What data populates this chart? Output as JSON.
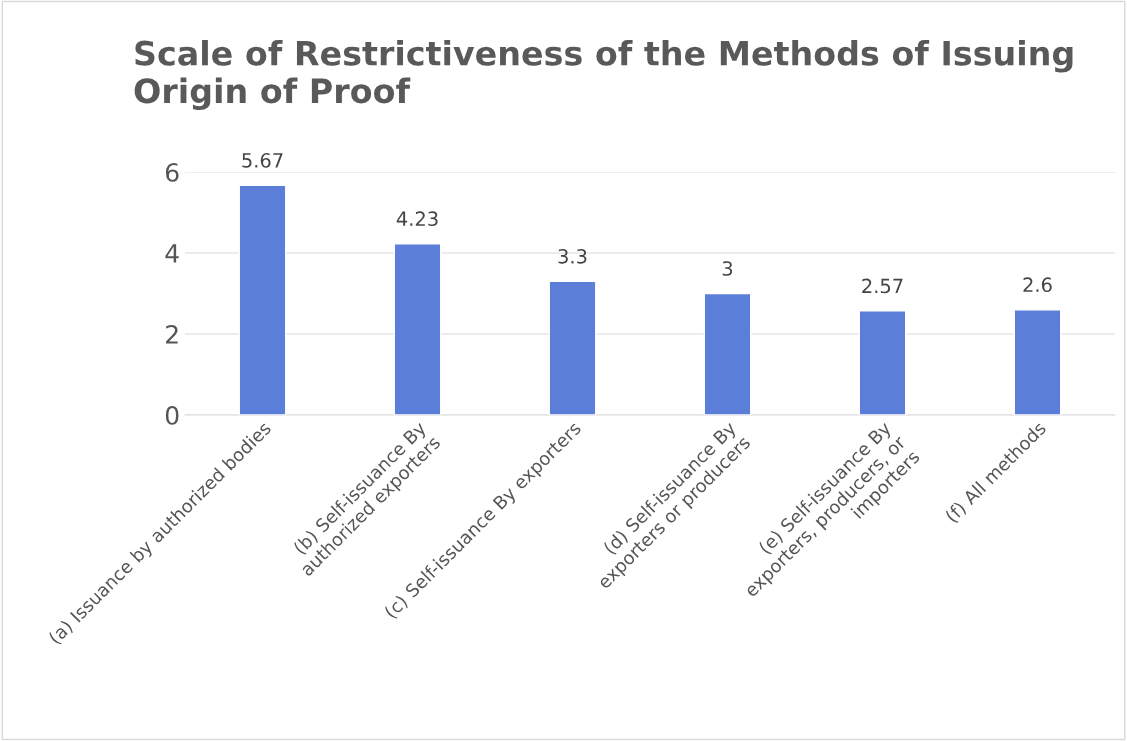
{
  "chart_data": {
    "type": "bar",
    "title": "Scale of Restrictiveness of the Methods of Issuing\nOrigin of Proof",
    "categories": [
      "(a) Issuance by authorized bodies",
      "(b) Self-issuance By\nauthorized exporters",
      "(c) Self-issuance By exporters",
      "(d) Self-issuance By\nexporters or producers",
      "(e) Self-issuance By\nexporters, producers, or\nimporters",
      "(f) All methods"
    ],
    "values": [
      5.67,
      4.23,
      3.3,
      3,
      2.57,
      2.6
    ],
    "color": "#5b7fd9",
    "ylim": [
      0,
      6
    ],
    "yticks": [
      0,
      2,
      4,
      6
    ],
    "grid": "y",
    "data_labels": true,
    "legend": false
  }
}
